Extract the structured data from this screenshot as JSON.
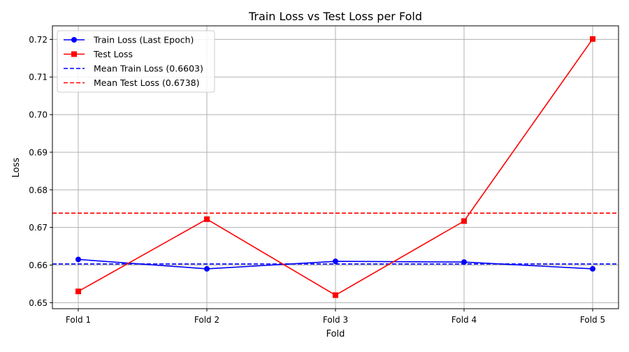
{
  "chart_data": {
    "type": "line",
    "title": "Train Loss vs Test Loss per Fold",
    "xlabel": "Fold",
    "ylabel": "Loss",
    "categories": [
      "Fold 1",
      "Fold 2",
      "Fold 3",
      "Fold 4",
      "Fold 5"
    ],
    "ylim": [
      0.6484,
      0.7236
    ],
    "yticks": [
      "0.65",
      "0.66",
      "0.67",
      "0.68",
      "0.69",
      "0.70",
      "0.71",
      "0.72"
    ],
    "ytick_values": [
      0.65,
      0.66,
      0.67,
      0.68,
      0.69,
      0.7,
      0.71,
      0.72
    ],
    "grid": true,
    "legend_position": "top-left",
    "series": [
      {
        "name": "Train Loss (Last Epoch)",
        "color": "#0000ff",
        "marker": "circle",
        "style": "solid",
        "values": [
          0.6615,
          0.659,
          0.661,
          0.6608,
          0.659
        ]
      },
      {
        "name": "Test Loss",
        "color": "#ff0000",
        "marker": "square",
        "style": "solid",
        "values": [
          0.653,
          0.6722,
          0.652,
          0.6717,
          0.7201
        ]
      }
    ],
    "reference_lines": [
      {
        "name": "Mean Train Loss (0.6603)",
        "value": 0.6603,
        "color": "#0000ff",
        "style": "dashed"
      },
      {
        "name": "Mean Test Loss (0.6738)",
        "value": 0.6738,
        "color": "#ff0000",
        "style": "dashed"
      }
    ]
  }
}
